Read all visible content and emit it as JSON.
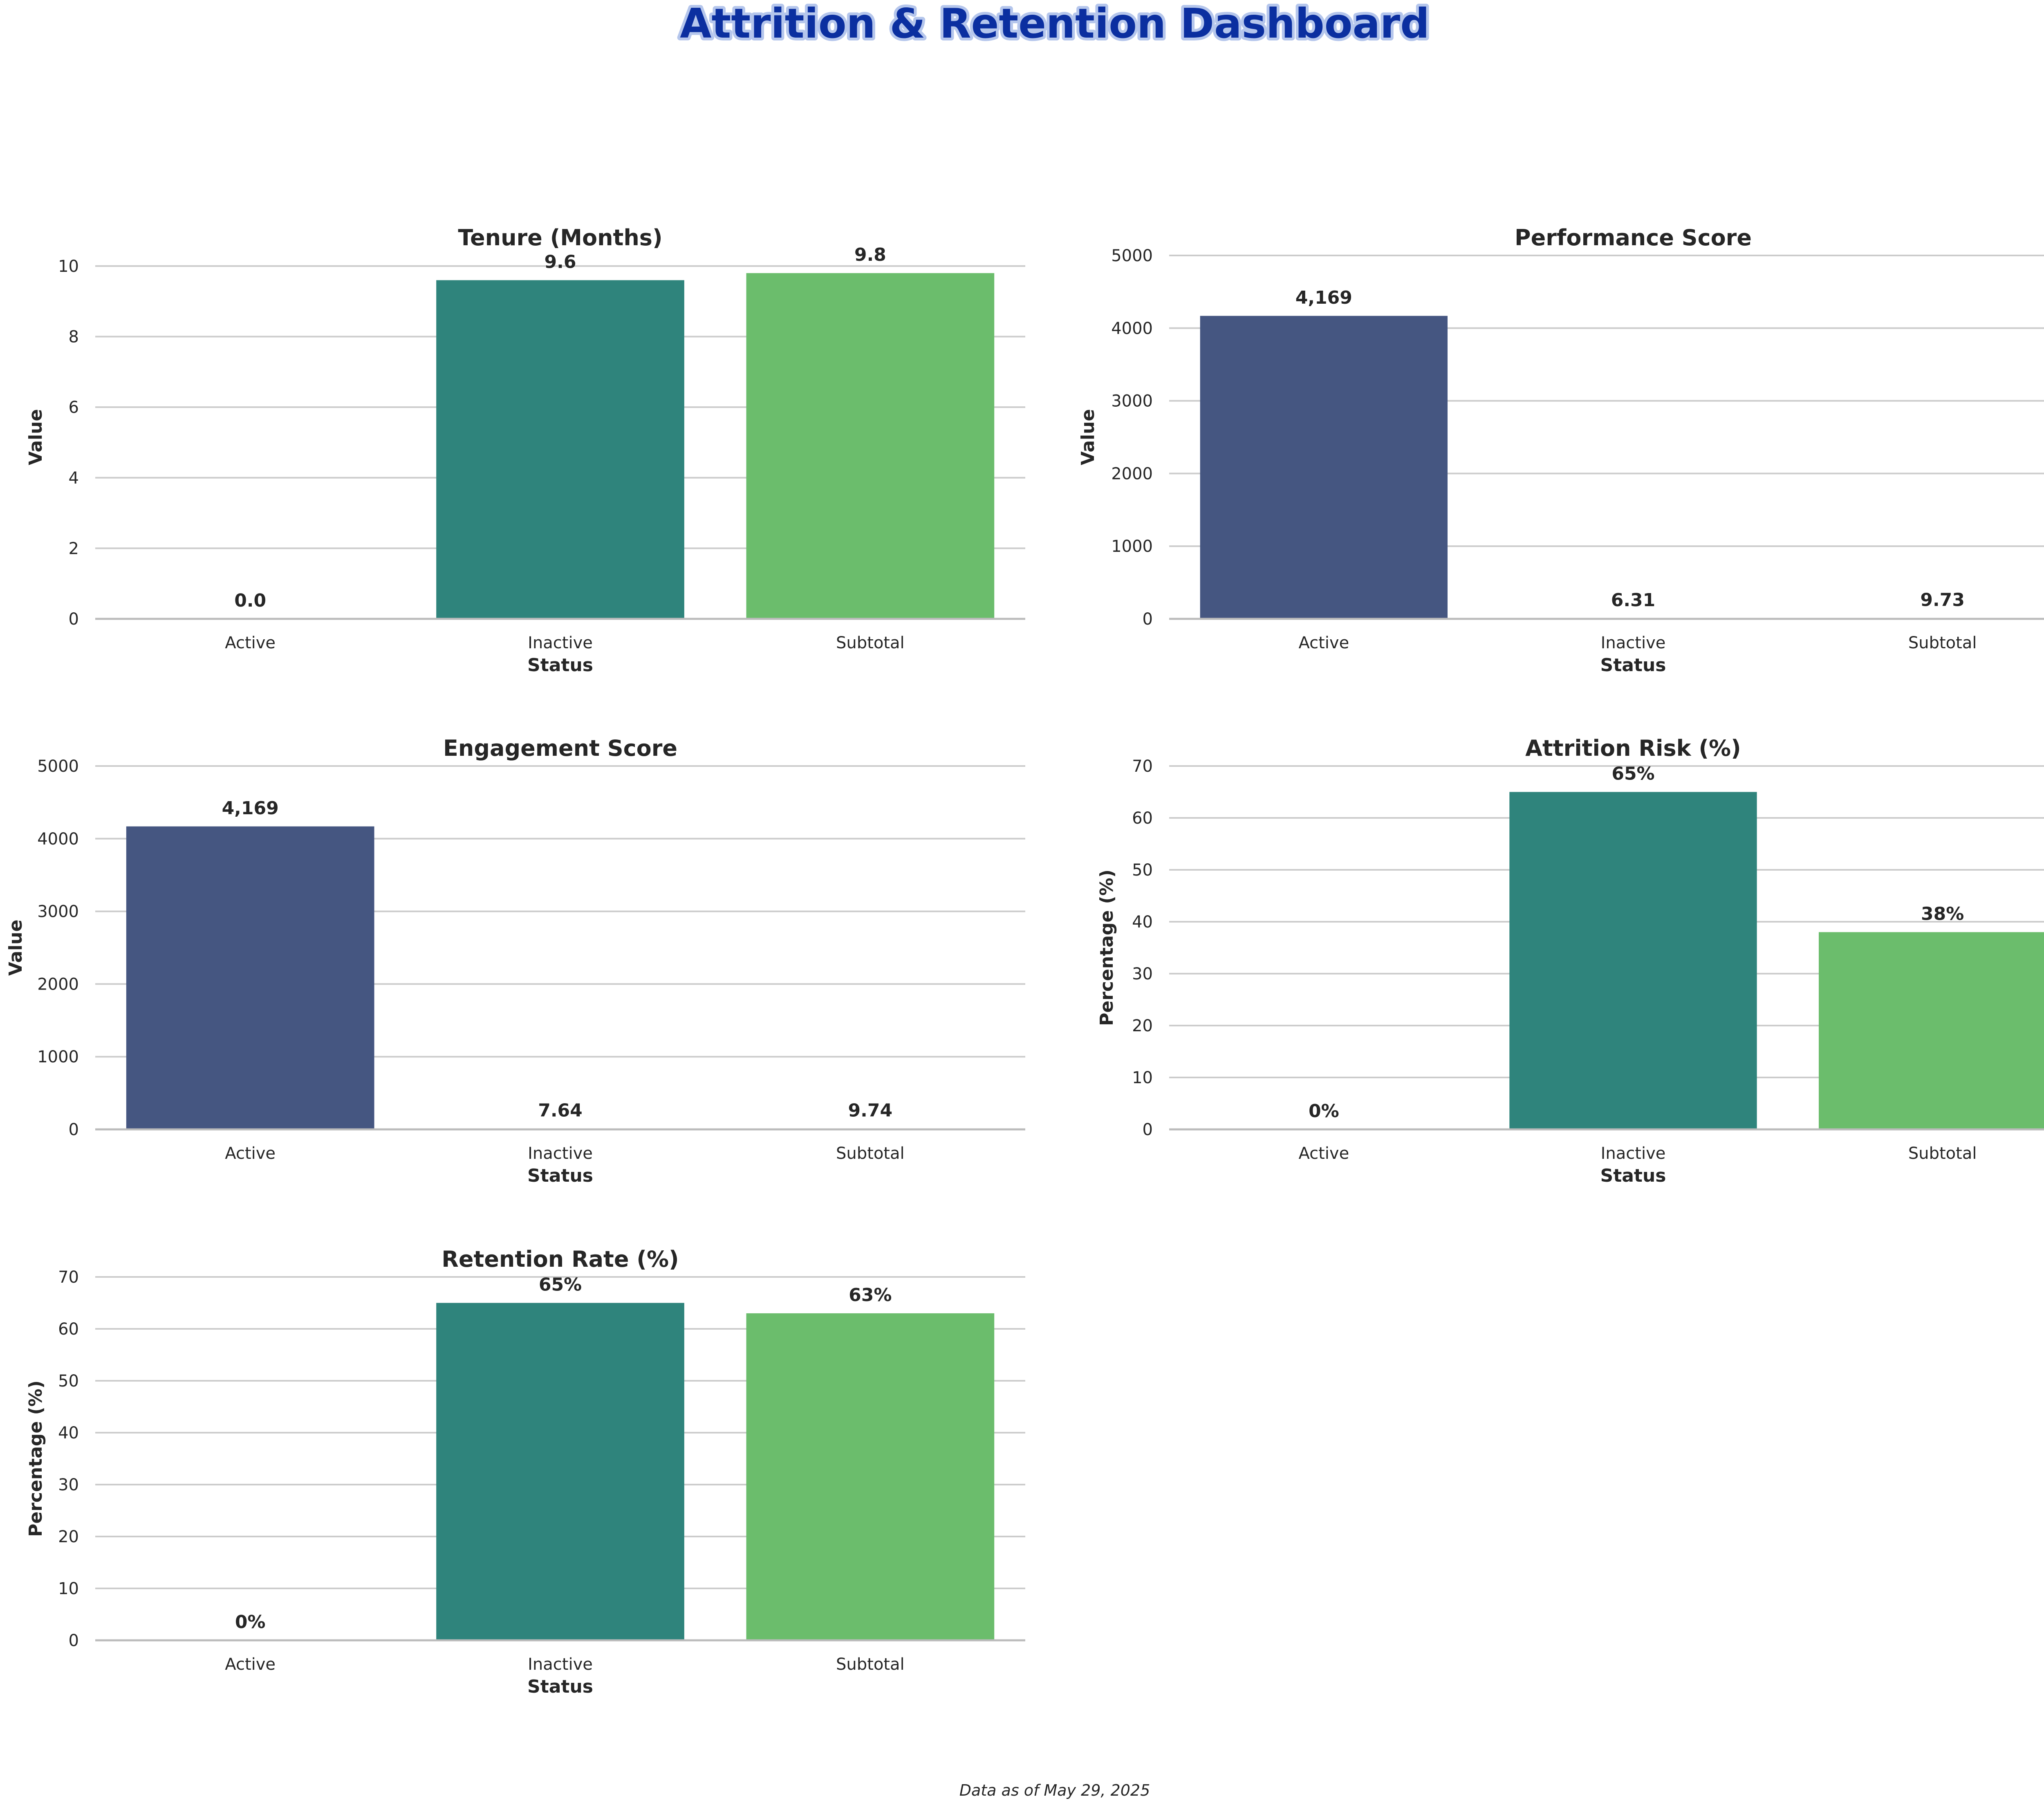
{
  "dashboard": {
    "title": "Attrition & Retention Dashboard",
    "footnote": "Data as of May 29, 2025"
  },
  "colors": {
    "title_fill": "#0b2fa0",
    "title_outline": "#b5c6ec",
    "bar_active": "#455681",
    "bar_inactive": "#2f847c",
    "bar_subtotal": "#6bbd6c",
    "grid": "#cccccc",
    "text": "#262626"
  },
  "chart_data": [
    {
      "type": "bar",
      "title": "Tenure (Months)",
      "xlabel": "Status",
      "ylabel": "Value",
      "categories": [
        "Active",
        "Inactive",
        "Subtotal"
      ],
      "values": [
        0.0,
        9.6,
        9.8
      ],
      "value_labels": [
        "0.0",
        "9.6",
        "9.8"
      ],
      "yticks": [
        0,
        2,
        4,
        6,
        8,
        10
      ],
      "ylim": [
        0,
        10.3
      ],
      "grid": true
    },
    {
      "type": "bar",
      "title": "Performance Score",
      "xlabel": "Status",
      "ylabel": "Value",
      "categories": [
        "Active",
        "Inactive",
        "Subtotal"
      ],
      "values": [
        4169,
        6.31,
        9.73
      ],
      "value_labels": [
        "4,169",
        "6.31",
        "9.73"
      ],
      "yticks": [
        0,
        1000,
        2000,
        3000,
        4000,
        5000
      ],
      "ylim": [
        0,
        5000
      ],
      "grid": true
    },
    {
      "type": "bar",
      "title": "Engagement Score",
      "xlabel": "Status",
      "ylabel": "Value",
      "categories": [
        "Active",
        "Inactive",
        "Subtotal"
      ],
      "values": [
        4169,
        7.64,
        9.74
      ],
      "value_labels": [
        "4,169",
        "7.64",
        "9.74"
      ],
      "yticks": [
        0,
        1000,
        2000,
        3000,
        4000,
        5000
      ],
      "ylim": [
        0,
        5000
      ],
      "grid": true
    },
    {
      "type": "bar",
      "title": "Attrition Risk (%)",
      "xlabel": "Status",
      "ylabel": "Percentage (%)",
      "categories": [
        "Active",
        "Inactive",
        "Subtotal"
      ],
      "values": [
        0,
        65,
        38
      ],
      "value_labels": [
        "0%",
        "65%",
        "38%"
      ],
      "yticks": [
        0,
        10,
        20,
        30,
        40,
        50,
        60,
        70
      ],
      "ylim": [
        0,
        70
      ],
      "grid": true
    },
    {
      "type": "bar",
      "title": "Retention Rate (%)",
      "xlabel": "Status",
      "ylabel": "Percentage (%)",
      "categories": [
        "Active",
        "Inactive",
        "Subtotal"
      ],
      "values": [
        0,
        65,
        63
      ],
      "value_labels": [
        "0%",
        "65%",
        "63%"
      ],
      "yticks": [
        0,
        10,
        20,
        30,
        40,
        50,
        60,
        70
      ],
      "ylim": [
        0,
        70
      ],
      "grid": true
    }
  ]
}
